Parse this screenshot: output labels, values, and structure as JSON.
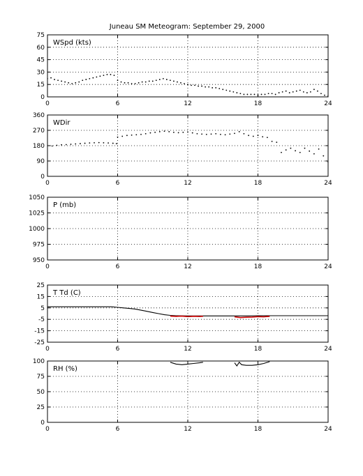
{
  "figure": {
    "title": "Juneau SM Meteogram: September 29, 2000"
  },
  "colors": {
    "background": "#ffffff",
    "axis": "#000000",
    "grid": "#000000",
    "series_primary": "#000000",
    "series_dewpoint": "#cc0000"
  },
  "chart_data": [
    {
      "type": "scatter",
      "label": "WSpd (kts)",
      "xlabel": "",
      "ylabel": "",
      "xlim": [
        0,
        24
      ],
      "ylim": [
        0,
        75
      ],
      "xticks": [
        0,
        6,
        12,
        18,
        24
      ],
      "yticks": [
        0,
        15,
        30,
        45,
        60,
        75
      ],
      "grid": true,
      "series": [
        {
          "style": "dots",
          "points": [
            [
              0.0,
              22
            ],
            [
              0.3,
              23
            ],
            [
              0.6,
              21
            ],
            [
              0.9,
              20
            ],
            [
              1.2,
              19
            ],
            [
              1.5,
              18
            ],
            [
              1.8,
              17
            ],
            [
              2.1,
              16
            ],
            [
              2.4,
              17
            ],
            [
              2.7,
              18
            ],
            [
              3.0,
              20
            ],
            [
              3.3,
              21
            ],
            [
              3.6,
              22
            ],
            [
              3.9,
              23
            ],
            [
              4.2,
              24
            ],
            [
              4.5,
              25
            ],
            [
              4.8,
              26
            ],
            [
              5.1,
              27
            ],
            [
              5.4,
              27
            ],
            [
              5.7,
              26
            ],
            [
              6.0,
              20
            ],
            [
              6.3,
              18
            ],
            [
              6.6,
              17
            ],
            [
              6.9,
              17
            ],
            [
              7.2,
              16
            ],
            [
              7.5,
              16
            ],
            [
              7.8,
              17
            ],
            [
              8.1,
              18
            ],
            [
              8.4,
              18
            ],
            [
              8.7,
              19
            ],
            [
              9.0,
              19
            ],
            [
              9.3,
              20
            ],
            [
              9.6,
              21
            ],
            [
              9.9,
              22
            ],
            [
              10.2,
              21
            ],
            [
              10.5,
              20
            ],
            [
              10.8,
              19
            ],
            [
              11.1,
              18
            ],
            [
              11.4,
              17
            ],
            [
              11.7,
              16
            ],
            [
              12.0,
              15
            ],
            [
              12.3,
              14
            ],
            [
              12.6,
              14
            ],
            [
              12.9,
              13
            ],
            [
              13.2,
              13
            ],
            [
              13.5,
              12
            ],
            [
              13.8,
              12
            ],
            [
              14.1,
              11
            ],
            [
              14.4,
              11
            ],
            [
              14.7,
              10
            ],
            [
              15.0,
              9
            ],
            [
              15.3,
              8
            ],
            [
              15.6,
              7
            ],
            [
              15.9,
              6
            ],
            [
              16.2,
              5
            ],
            [
              16.5,
              4
            ],
            [
              16.8,
              3
            ],
            [
              17.1,
              3
            ],
            [
              17.4,
              3
            ],
            [
              17.7,
              3
            ],
            [
              18.0,
              2
            ],
            [
              18.3,
              3
            ],
            [
              18.6,
              3
            ],
            [
              18.9,
              4
            ],
            [
              19.2,
              4
            ],
            [
              19.5,
              3
            ],
            [
              19.8,
              5
            ],
            [
              20.1,
              6
            ],
            [
              20.4,
              7
            ],
            [
              20.7,
              5
            ],
            [
              21.0,
              6
            ],
            [
              21.3,
              7
            ],
            [
              21.6,
              8
            ],
            [
              21.9,
              6
            ],
            [
              22.2,
              5
            ],
            [
              22.5,
              6
            ],
            [
              22.8,
              9
            ],
            [
              23.1,
              7
            ],
            [
              23.4,
              4
            ],
            [
              23.7,
              2
            ],
            [
              24.0,
              1
            ]
          ]
        }
      ]
    },
    {
      "type": "scatter",
      "label": "WDir",
      "xlabel": "",
      "ylabel": "",
      "xlim": [
        0,
        24
      ],
      "ylim": [
        0,
        360
      ],
      "xticks": [
        0,
        6,
        12,
        18,
        24
      ],
      "yticks": [
        0,
        90,
        180,
        270,
        360
      ],
      "grid": true,
      "series": [
        {
          "style": "dots",
          "points": [
            [
              0.0,
              180
            ],
            [
              0.4,
              178
            ],
            [
              0.8,
              182
            ],
            [
              1.2,
              185
            ],
            [
              1.6,
              186
            ],
            [
              2.0,
              188
            ],
            [
              2.4,
              190
            ],
            [
              2.8,
              192
            ],
            [
              3.2,
              194
            ],
            [
              3.6,
              196
            ],
            [
              4.0,
              197
            ],
            [
              4.4,
              198
            ],
            [
              4.8,
              197
            ],
            [
              5.2,
              196
            ],
            [
              5.6,
              194
            ],
            [
              5.9,
              192
            ],
            [
              6.0,
              230
            ],
            [
              6.4,
              235
            ],
            [
              6.8,
              240
            ],
            [
              7.2,
              242
            ],
            [
              7.6,
              244
            ],
            [
              8.0,
              246
            ],
            [
              8.4,
              250
            ],
            [
              8.8,
              255
            ],
            [
              9.2,
              258
            ],
            [
              9.6,
              262
            ],
            [
              10.0,
              265
            ],
            [
              10.4,
              262
            ],
            [
              10.8,
              258
            ],
            [
              11.2,
              256
            ],
            [
              11.6,
              258
            ],
            [
              12.0,
              260
            ],
            [
              12.4,
              255
            ],
            [
              12.8,
              250
            ],
            [
              13.2,
              248
            ],
            [
              13.6,
              246
            ],
            [
              14.0,
              248
            ],
            [
              14.4,
              250
            ],
            [
              14.8,
              246
            ],
            [
              15.2,
              244
            ],
            [
              15.6,
              248
            ],
            [
              16.0,
              252
            ],
            [
              16.4,
              262
            ],
            [
              16.8,
              250
            ],
            [
              17.2,
              240
            ],
            [
              17.6,
              235
            ],
            [
              18.0,
              240
            ],
            [
              18.4,
              232
            ],
            [
              18.8,
              228
            ],
            [
              19.2,
              205
            ],
            [
              19.6,
              200
            ],
            [
              20.0,
              140
            ],
            [
              20.4,
              155
            ],
            [
              20.8,
              165
            ],
            [
              21.2,
              150
            ],
            [
              21.6,
              140
            ],
            [
              22.0,
              165
            ],
            [
              22.4,
              148
            ],
            [
              22.8,
              132
            ],
            [
              23.2,
              160
            ],
            [
              23.6,
              120
            ],
            [
              24.0,
              85
            ]
          ]
        }
      ]
    },
    {
      "type": "line",
      "label": "P (mb)",
      "xlabel": "",
      "ylabel": "",
      "xlim": [
        0,
        24
      ],
      "ylim": [
        950,
        1050
      ],
      "xticks": [
        0,
        6,
        12,
        18,
        24
      ],
      "yticks": [
        950,
        975,
        1000,
        1025,
        1050
      ],
      "grid": true,
      "series": []
    },
    {
      "type": "line",
      "label": "T Td (C)",
      "xlabel": "",
      "ylabel": "",
      "xlim": [
        0,
        24
      ],
      "ylim": [
        -25,
        25
      ],
      "xticks": [
        0,
        6,
        12,
        18,
        24
      ],
      "yticks": [
        -25,
        -15,
        -5,
        5,
        15,
        25
      ],
      "grid": true,
      "series": [
        {
          "role": "temperature",
          "style": "line",
          "points": [
            [
              0,
              6
            ],
            [
              1,
              6
            ],
            [
              2,
              6
            ],
            [
              3,
              6
            ],
            [
              4,
              6
            ],
            [
              5,
              6
            ],
            [
              5.5,
              6
            ],
            [
              6,
              5.5
            ],
            [
              6.5,
              5
            ],
            [
              7,
              4.5
            ],
            [
              7.5,
              4
            ],
            [
              8,
              3
            ],
            [
              8.5,
              2
            ],
            [
              9,
              1
            ],
            [
              9.5,
              0
            ],
            [
              10,
              -1
            ],
            [
              10.5,
              -1.5
            ],
            [
              11,
              -1.8
            ],
            [
              12,
              -2
            ],
            [
              13,
              -2
            ],
            [
              14,
              -2
            ],
            [
              15,
              -2
            ],
            [
              16,
              -2
            ],
            [
              17,
              -2
            ],
            [
              18,
              -1.8
            ],
            [
              19,
              -1.8
            ],
            [
              20,
              -1.8
            ],
            [
              21,
              -1.8
            ],
            [
              22,
              -1.8
            ],
            [
              23,
              -1.8
            ],
            [
              24,
              -1.8
            ]
          ]
        },
        {
          "role": "dewpoint",
          "style": "segments",
          "segments": [
            [
              [
                10.5,
                -2.2
              ],
              [
                11,
                -2.4
              ],
              [
                11.5,
                -2.2
              ],
              [
                12,
                -2.6
              ],
              [
                12.5,
                -2.3
              ],
              [
                13,
                -2.5
              ],
              [
                13.3,
                -2.3
              ]
            ],
            [
              [
                16,
                -2.8
              ],
              [
                16.5,
                -3.5
              ],
              [
                17,
                -3.2
              ],
              [
                17.5,
                -3
              ],
              [
                18,
                -2.6
              ],
              [
                18.5,
                -2.8
              ],
              [
                19,
                -2.4
              ]
            ]
          ]
        }
      ]
    },
    {
      "type": "line",
      "label": "RH (%)",
      "xlabel": "",
      "ylabel": "",
      "xlim": [
        0,
        24
      ],
      "ylim": [
        0,
        100
      ],
      "xticks": [
        0,
        6,
        12,
        18,
        24
      ],
      "yticks": [
        0,
        25,
        50,
        75,
        100
      ],
      "grid": true,
      "series": [
        {
          "style": "segments",
          "segments": [
            [
              [
                10.5,
                98
              ],
              [
                11,
                95
              ],
              [
                11.5,
                94
              ],
              [
                12,
                95
              ],
              [
                12.5,
                96
              ],
              [
                13,
                97
              ],
              [
                13.3,
                98
              ]
            ],
            [
              [
                16,
                97
              ],
              [
                16.2,
                92
              ],
              [
                16.4,
                98
              ],
              [
                16.6,
                94
              ],
              [
                17,
                93
              ],
              [
                17.5,
                93
              ],
              [
                18,
                94
              ],
              [
                18.5,
                96
              ],
              [
                19,
                99
              ]
            ]
          ]
        }
      ]
    }
  ]
}
